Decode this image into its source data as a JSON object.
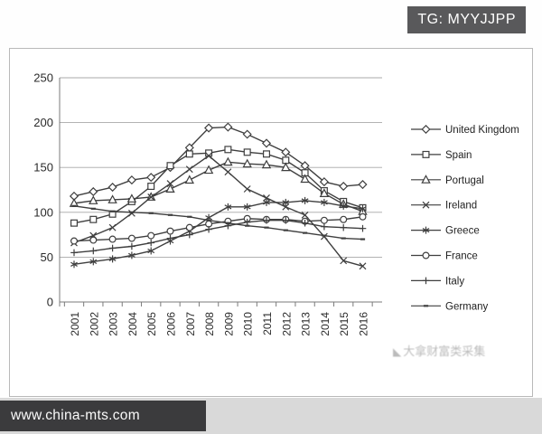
{
  "badge": {
    "text": "TG: MYYJJPP"
  },
  "footer": {
    "url": "www.china-mts.com"
  },
  "watermark": {
    "logo": "◣",
    "text": "大拿财富类采集"
  },
  "chart_data": {
    "type": "line",
    "title": "",
    "xlabel": "",
    "ylabel": "",
    "x": [
      2001,
      2002,
      2003,
      2004,
      2005,
      2006,
      2007,
      2008,
      2009,
      2010,
      2011,
      2012,
      2013,
      2014,
      2015,
      2016
    ],
    "ylim": [
      0,
      250
    ],
    "yticks": [
      0,
      50,
      100,
      150,
      200,
      250
    ],
    "grid": true,
    "legend_position": "right",
    "line_color": "#3f3f3f",
    "series": [
      {
        "name": "United Kingdom",
        "marker": "diamond",
        "values": [
          118,
          123,
          128,
          136,
          139,
          150,
          172,
          194,
          195,
          187,
          177,
          167,
          152,
          134,
          129,
          131
        ]
      },
      {
        "name": "Spain",
        "marker": "square",
        "values": [
          88,
          92,
          98,
          112,
          129,
          152,
          165,
          166,
          170,
          167,
          165,
          158,
          144,
          124,
          112,
          105
        ]
      },
      {
        "name": "Portugal",
        "marker": "triangle",
        "values": [
          110,
          113,
          114,
          115,
          117,
          126,
          136,
          147,
          156,
          154,
          153,
          150,
          137,
          121,
          109,
          101
        ]
      },
      {
        "name": "Ireland",
        "marker": "x",
        "values": [
          66,
          74,
          83,
          99,
          117,
          132,
          148,
          163,
          145,
          126,
          116,
          106,
          97,
          73,
          46,
          40
        ]
      },
      {
        "name": "Greece",
        "marker": "star",
        "values": [
          42,
          45,
          48,
          52,
          57,
          68,
          79,
          94,
          106,
          106,
          111,
          111,
          113,
          111,
          107,
          104
        ]
      },
      {
        "name": "France",
        "marker": "circle",
        "values": [
          68,
          69,
          70,
          71,
          74,
          79,
          83,
          87,
          90,
          93,
          92,
          92,
          90,
          91,
          92,
          95
        ]
      },
      {
        "name": "Italy",
        "marker": "plus",
        "values": [
          55,
          57,
          60,
          62,
          66,
          71,
          75,
          81,
          85,
          89,
          91,
          91,
          88,
          84,
          83,
          82
        ]
      },
      {
        "name": "Germany",
        "marker": "dash",
        "values": [
          107,
          104,
          101,
          100,
          99,
          97,
          95,
          91,
          88,
          85,
          83,
          80,
          77,
          74,
          71,
          70
        ]
      }
    ]
  }
}
